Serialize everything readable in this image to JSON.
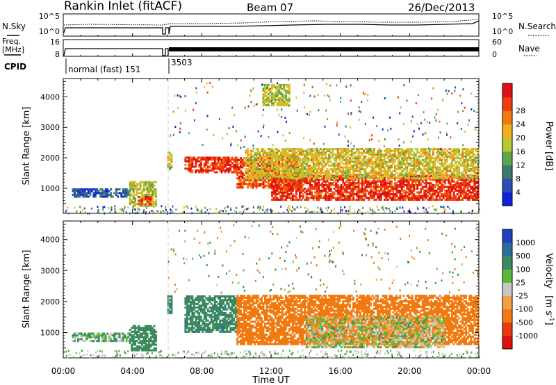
{
  "header": {
    "station": "Rankin Inlet (fitACF)",
    "beam": "Beam 07",
    "date": "26/Dec/2013"
  },
  "top_panel": {
    "left_label": "N.Sky",
    "right_label": "N.Search",
    "left_ticks": [
      "10^5",
      "10^0"
    ],
    "right_ticks": [
      "10^5",
      "10^0"
    ]
  },
  "freq_panel": {
    "left_label_1": "Freq.",
    "left_label_2": "[MHz]",
    "right_label": "Nave",
    "left_ticks": [
      "16",
      "8"
    ],
    "right_ticks": [
      "60",
      "0"
    ]
  },
  "cpid": {
    "label": "CPID",
    "mode_1": "normal (fast) 151",
    "mode_2": "3503"
  },
  "axes": {
    "ylabel": "Slant Range [km]",
    "xlabel": "Time UT",
    "yticks": [
      "1000",
      "2000",
      "3000",
      "4000"
    ],
    "xticks": [
      "00:00",
      "04:00",
      "08:00",
      "12:00",
      "16:00",
      "20:00",
      "00:00"
    ]
  },
  "power_scale": {
    "label": "Power [dB]",
    "ticks": [
      "4",
      "8",
      "12",
      "16",
      "20",
      "24",
      "28"
    ],
    "colors": [
      "#1020e0",
      "#2a4fb0",
      "#3b7a6e",
      "#5aa84a",
      "#b6c830",
      "#f0b020",
      "#f07a10",
      "#f03a10",
      "#e01010"
    ]
  },
  "velocity_scale": {
    "label_main": "Velocity",
    "label_unit": "[m s",
    "label_exp": "-1",
    "label_close": "]",
    "ticks": [
      "1000",
      "500",
      "100",
      "25",
      "-25",
      "-100",
      "-500",
      "-1000"
    ],
    "colors": [
      "#2040c0",
      "#2c6e9a",
      "#3c8a5e",
      "#5ab83a",
      "#c8c8c8",
      "#f5a040",
      "#f07a10",
      "#e83a10",
      "#e01010"
    ]
  },
  "chart_data": [
    {
      "type": "heatmap",
      "title": "Rankin Inlet (fitACF)",
      "xlabel": "Time UT",
      "ylabel": "Slant Range [km]",
      "colorbar_label": "Power [dB]",
      "xlim": [
        "00:00",
        "24:00"
      ],
      "ylim": [
        180,
        4600
      ],
      "colorbar_range": [
        0,
        32
      ],
      "grid": false,
      "regions": [
        {
          "t": [
            0.5,
            3.8
          ],
          "range_km": [
            700,
            1000
          ],
          "power_db": 6
        },
        {
          "t": [
            3.8,
            5.3
          ],
          "range_km": [
            400,
            1200
          ],
          "power_db": 16
        },
        {
          "t": [
            4.3,
            5.0
          ],
          "range_km": [
            450,
            750
          ],
          "power_db": 26
        },
        {
          "t": [
            6.0,
            6.2
          ],
          "range_km": [
            1600,
            2200
          ],
          "power_db": 18
        },
        {
          "t": [
            7.0,
            10.0
          ],
          "range_km": [
            1500,
            2000
          ],
          "power_db": 28
        },
        {
          "t": [
            10.0,
            13.5
          ],
          "range_km": [
            1000,
            2000
          ],
          "power_db": 26
        },
        {
          "t": [
            12.0,
            24.0
          ],
          "range_km": [
            600,
            1400
          ],
          "power_db": 28
        },
        {
          "t": [
            10.5,
            24.0
          ],
          "range_km": [
            1300,
            2300
          ],
          "power_db": 18
        },
        {
          "t": [
            11.5,
            13.0
          ],
          "range_km": [
            3700,
            4400
          ],
          "power_db": 16
        }
      ]
    },
    {
      "type": "heatmap",
      "xlabel": "Time UT",
      "ylabel": "Slant Range [km]",
      "colorbar_label": "Velocity [m s-1]",
      "xlim": [
        "00:00",
        "24:00"
      ],
      "ylim": [
        180,
        4600
      ],
      "colorbar_range": [
        -1000,
        1000
      ],
      "grid": false,
      "regions": [
        {
          "t": [
            0.5,
            3.8
          ],
          "range_km": [
            700,
            1000
          ],
          "velocity": 100
        },
        {
          "t": [
            3.8,
            5.3
          ],
          "range_km": [
            400,
            1200
          ],
          "velocity": 300
        },
        {
          "t": [
            6.0,
            6.2
          ],
          "range_km": [
            1600,
            2200
          ],
          "velocity": 400
        },
        {
          "t": [
            7.0,
            10.0
          ],
          "range_km": [
            1000,
            2200
          ],
          "velocity": 400
        },
        {
          "t": [
            10.0,
            24.0
          ],
          "range_km": [
            600,
            2200
          ],
          "velocity": -300
        },
        {
          "t": [
            14.0,
            22.0
          ],
          "range_km": [
            500,
            1500
          ],
          "velocity": 0
        }
      ]
    }
  ]
}
